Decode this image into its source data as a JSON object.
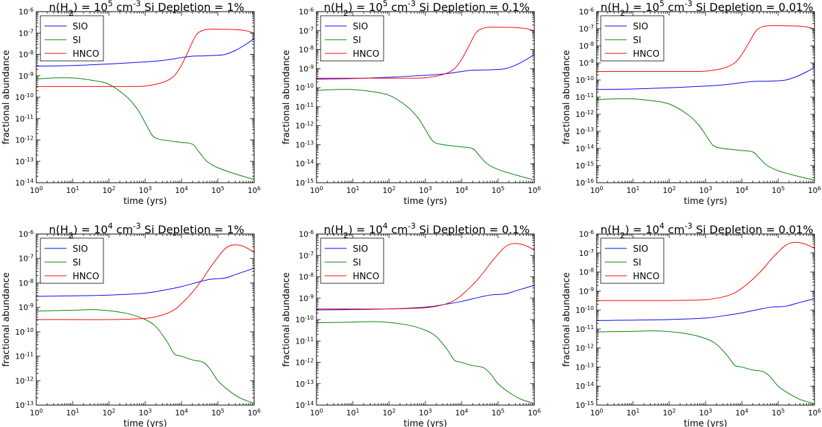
{
  "figure_title": "SIO, SI and HNCO fractional abundance vs time",
  "chart_data": [
    {
      "type": "line",
      "title_parts": {
        "n_label": "n(H",
        "n_sub": "2",
        "n_eq": ") = 10",
        "n_exp": "5",
        "unit": "cm",
        "unit_exp": "-3",
        "depletion": "Si Depletion = 1%"
      },
      "xlabel": "time (yrs)",
      "ylabel": "fractional abundance",
      "xscale": "log",
      "yscale": "log",
      "xlim_exp": [
        0,
        6
      ],
      "ylim_exp": [
        -14,
        -6
      ],
      "legend": [
        "SIO",
        "SI",
        "HNCO"
      ],
      "legend_position": "upper-left",
      "series": [
        {
          "name": "SIO",
          "color": "#0000ff",
          "x_log": [
            0,
            1,
            2,
            3,
            3.5,
            4,
            4.3,
            4.6,
            4.9,
            5.2,
            5.5,
            5.8,
            6
          ],
          "y_log": [
            -8.55,
            -8.52,
            -8.45,
            -8.35,
            -8.28,
            -8.15,
            -8.08,
            -8.07,
            -8.05,
            -8.0,
            -7.8,
            -7.5,
            -7.25
          ]
        },
        {
          "name": "SI",
          "color": "#008000",
          "x_log": [
            0,
            0.5,
            1,
            1.5,
            2,
            2.5,
            2.8,
            3,
            3.2,
            3.4,
            3.7,
            4,
            4.3,
            4.5,
            4.7,
            5,
            5.5,
            6
          ],
          "y_log": [
            -9.15,
            -9.1,
            -9.1,
            -9.2,
            -9.4,
            -10,
            -10.6,
            -11.2,
            -11.8,
            -11.97,
            -12.05,
            -12.12,
            -12.2,
            -12.6,
            -13.0,
            -13.3,
            -13.6,
            -13.85
          ]
        },
        {
          "name": "HNCO",
          "color": "#ff0000",
          "x_log": [
            0,
            1,
            2,
            2.5,
            3,
            3.5,
            3.8,
            4,
            4.2,
            4.4,
            4.6,
            4.8,
            5,
            5.5,
            5.8,
            6
          ],
          "y_log": [
            -9.5,
            -9.5,
            -9.5,
            -9.5,
            -9.48,
            -9.3,
            -9.0,
            -8.5,
            -7.8,
            -7.1,
            -6.87,
            -6.82,
            -6.82,
            -6.84,
            -6.9,
            -7.02
          ]
        }
      ]
    },
    {
      "type": "line",
      "title_parts": {
        "n_label": "n(H",
        "n_sub": "2",
        "n_eq": ") = 10",
        "n_exp": "5",
        "unit": "cm",
        "unit_exp": "-3",
        "depletion": "Si Depletion = 0.1%"
      },
      "xlabel": "time (yrs)",
      "ylabel": "fractional abundance",
      "xscale": "log",
      "yscale": "log",
      "xlim_exp": [
        0,
        6
      ],
      "ylim_exp": [
        -15,
        -6
      ],
      "legend": [
        "SIO",
        "SI",
        "HNCO"
      ],
      "legend_position": "upper-left",
      "series": [
        {
          "name": "SIO",
          "color": "#0000ff",
          "x_log": [
            0,
            1,
            2,
            3,
            3.5,
            4,
            4.3,
            4.6,
            4.9,
            5.2,
            5.5,
            5.8,
            6
          ],
          "y_log": [
            -9.55,
            -9.52,
            -9.45,
            -9.35,
            -9.28,
            -9.15,
            -9.08,
            -9.07,
            -9.05,
            -9.0,
            -8.8,
            -8.5,
            -8.25
          ]
        },
        {
          "name": "SI",
          "color": "#008000",
          "x_log": [
            0,
            0.5,
            1,
            1.5,
            2,
            2.5,
            2.8,
            3,
            3.2,
            3.4,
            3.7,
            4,
            4.3,
            4.5,
            4.7,
            5,
            5.5,
            6
          ],
          "y_log": [
            -10.15,
            -10.1,
            -10.1,
            -10.2,
            -10.4,
            -11,
            -11.6,
            -12.2,
            -12.8,
            -12.97,
            -13.05,
            -13.12,
            -13.2,
            -13.6,
            -14.0,
            -14.3,
            -14.6,
            -14.85
          ]
        },
        {
          "name": "HNCO",
          "color": "#ff0000",
          "x_log": [
            0,
            1,
            2,
            2.5,
            3,
            3.5,
            3.8,
            4,
            4.2,
            4.4,
            4.6,
            4.8,
            5,
            5.5,
            5.8,
            6
          ],
          "y_log": [
            -9.5,
            -9.5,
            -9.5,
            -9.5,
            -9.48,
            -9.3,
            -9.0,
            -8.5,
            -7.8,
            -7.1,
            -6.87,
            -6.82,
            -6.82,
            -6.84,
            -6.9,
            -7.02
          ]
        }
      ]
    },
    {
      "type": "line",
      "title_parts": {
        "n_label": "n(H",
        "n_sub": "2",
        "n_eq": ") = 10",
        "n_exp": "5",
        "unit": "cm",
        "unit_exp": "-3",
        "depletion": "Si Depletion = 0.01%"
      },
      "xlabel": "time (yrs)",
      "ylabel": "fractional abundance",
      "xscale": "log",
      "yscale": "log",
      "xlim_exp": [
        0,
        6
      ],
      "ylim_exp": [
        -16,
        -6
      ],
      "legend": [
        "SIO",
        "SI",
        "HNCO"
      ],
      "legend_position": "upper-left",
      "series": [
        {
          "name": "SIO",
          "color": "#0000ff",
          "x_log": [
            0,
            1,
            2,
            3,
            3.5,
            4,
            4.3,
            4.6,
            4.9,
            5.2,
            5.5,
            5.8,
            6
          ],
          "y_log": [
            -10.55,
            -10.52,
            -10.45,
            -10.35,
            -10.28,
            -10.15,
            -10.08,
            -10.07,
            -10.05,
            -10.0,
            -9.8,
            -9.5,
            -9.25
          ]
        },
        {
          "name": "SI",
          "color": "#008000",
          "x_log": [
            0,
            0.5,
            1,
            1.5,
            2,
            2.5,
            2.8,
            3,
            3.2,
            3.4,
            3.7,
            4,
            4.3,
            4.5,
            4.7,
            5,
            5.5,
            6
          ],
          "y_log": [
            -11.15,
            -11.1,
            -11.1,
            -11.2,
            -11.4,
            -12,
            -12.6,
            -13.2,
            -13.8,
            -13.97,
            -14.05,
            -14.12,
            -14.2,
            -14.6,
            -15.0,
            -15.3,
            -15.6,
            -15.85
          ]
        },
        {
          "name": "HNCO",
          "color": "#ff0000",
          "x_log": [
            0,
            1,
            2,
            2.5,
            3,
            3.5,
            3.8,
            4,
            4.2,
            4.4,
            4.6,
            4.8,
            5,
            5.5,
            5.8,
            6
          ],
          "y_log": [
            -9.5,
            -9.5,
            -9.5,
            -9.5,
            -9.48,
            -9.3,
            -9.0,
            -8.5,
            -7.8,
            -7.1,
            -6.87,
            -6.82,
            -6.82,
            -6.84,
            -6.9,
            -7.02
          ]
        }
      ]
    },
    {
      "type": "line",
      "title_parts": {
        "n_label": "n(H",
        "n_sub": "2",
        "n_eq": ") = 10",
        "n_exp": "4",
        "unit": "cm",
        "unit_exp": "-3",
        "depletion": "Si Depletion = 1%"
      },
      "xlabel": "time (yrs)",
      "ylabel": "fractional abundance",
      "xscale": "log",
      "yscale": "log",
      "xlim_exp": [
        0,
        6
      ],
      "ylim_exp": [
        -13,
        -6
      ],
      "legend": [
        "SIO",
        "SI",
        "HNCO"
      ],
      "legend_position": "upper-left",
      "series": [
        {
          "name": "SIO",
          "color": "#0000ff",
          "x_log": [
            0,
            1,
            2,
            3,
            3.5,
            4,
            4.5,
            4.8,
            5.2,
            5.5,
            5.8,
            6
          ],
          "y_log": [
            -8.55,
            -8.53,
            -8.5,
            -8.42,
            -8.3,
            -8.15,
            -7.95,
            -7.85,
            -7.8,
            -7.65,
            -7.5,
            -7.4
          ]
        },
        {
          "name": "SI",
          "color": "#008000",
          "x_log": [
            0,
            1,
            1.7,
            2.5,
            3,
            3.3,
            3.6,
            3.8,
            4,
            4.3,
            4.6,
            4.8,
            5,
            5.3,
            5.6,
            6
          ],
          "y_log": [
            -9.15,
            -9.12,
            -9.1,
            -9.25,
            -9.5,
            -9.8,
            -10.4,
            -10.9,
            -11.0,
            -11.15,
            -11.25,
            -11.55,
            -12.0,
            -12.4,
            -12.7,
            -12.93
          ]
        },
        {
          "name": "HNCO",
          "color": "#ff0000",
          "x_log": [
            0,
            1,
            2,
            3,
            3.5,
            3.8,
            4,
            4.2,
            4.4,
            4.6,
            4.8,
            5,
            5.2,
            5.4,
            5.7,
            6
          ],
          "y_log": [
            -9.5,
            -9.5,
            -9.5,
            -9.45,
            -9.3,
            -9.1,
            -8.85,
            -8.55,
            -8.2,
            -7.8,
            -7.35,
            -6.95,
            -6.6,
            -6.45,
            -6.5,
            -6.75
          ]
        }
      ]
    },
    {
      "type": "line",
      "title_parts": {
        "n_label": "n(H",
        "n_sub": "2",
        "n_eq": ") = 10",
        "n_exp": "4",
        "unit": "cm",
        "unit_exp": "-3",
        "depletion": "Si Depletion = 0.1%"
      },
      "xlabel": "time (yrs)",
      "ylabel": "fractional abundance",
      "xscale": "log",
      "yscale": "log",
      "xlim_exp": [
        0,
        6
      ],
      "ylim_exp": [
        -14,
        -6
      ],
      "legend": [
        "SIO",
        "SI",
        "HNCO"
      ],
      "legend_position": "upper-left",
      "series": [
        {
          "name": "SIO",
          "color": "#0000ff",
          "x_log": [
            0,
            1,
            2,
            3,
            3.5,
            4,
            4.5,
            4.8,
            5.2,
            5.5,
            5.8,
            6
          ],
          "y_log": [
            -9.55,
            -9.53,
            -9.5,
            -9.42,
            -9.3,
            -9.15,
            -8.95,
            -8.85,
            -8.8,
            -8.65,
            -8.5,
            -8.4
          ]
        },
        {
          "name": "SI",
          "color": "#008000",
          "x_log": [
            0,
            1,
            1.7,
            2.5,
            3,
            3.3,
            3.6,
            3.8,
            4,
            4.3,
            4.6,
            4.8,
            5,
            5.3,
            5.6,
            6
          ],
          "y_log": [
            -10.15,
            -10.12,
            -10.1,
            -10.25,
            -10.5,
            -10.8,
            -11.4,
            -11.9,
            -12.0,
            -12.15,
            -12.25,
            -12.55,
            -13.0,
            -13.4,
            -13.7,
            -13.93
          ]
        },
        {
          "name": "HNCO",
          "color": "#ff0000",
          "x_log": [
            0,
            1,
            2,
            3,
            3.5,
            3.8,
            4,
            4.2,
            4.4,
            4.6,
            4.8,
            5,
            5.2,
            5.4,
            5.7,
            6
          ],
          "y_log": [
            -9.5,
            -9.5,
            -9.5,
            -9.45,
            -9.3,
            -9.1,
            -8.85,
            -8.55,
            -8.2,
            -7.8,
            -7.35,
            -6.95,
            -6.6,
            -6.45,
            -6.5,
            -6.75
          ]
        }
      ]
    },
    {
      "type": "line",
      "title_parts": {
        "n_label": "n(H",
        "n_sub": "2",
        "n_eq": ") = 10",
        "n_exp": "4",
        "unit": "cm",
        "unit_exp": "-3",
        "depletion": "Si Depletion = 0.01%"
      },
      "xlabel": "time (yrs)",
      "ylabel": "fractional abundance",
      "xscale": "log",
      "yscale": "log",
      "xlim_exp": [
        0,
        6
      ],
      "ylim_exp": [
        -15,
        -6
      ],
      "legend": [
        "SIO",
        "SI",
        "HNCO"
      ],
      "legend_position": "upper-left",
      "series": [
        {
          "name": "SIO",
          "color": "#0000ff",
          "x_log": [
            0,
            1,
            2,
            3,
            3.5,
            4,
            4.5,
            4.8,
            5.2,
            5.5,
            5.8,
            6
          ],
          "y_log": [
            -10.55,
            -10.53,
            -10.5,
            -10.42,
            -10.3,
            -10.15,
            -9.95,
            -9.85,
            -9.8,
            -9.65,
            -9.5,
            -9.4
          ]
        },
        {
          "name": "SI",
          "color": "#008000",
          "x_log": [
            0,
            1,
            1.7,
            2.5,
            3,
            3.3,
            3.6,
            3.8,
            4,
            4.3,
            4.6,
            4.8,
            5,
            5.3,
            5.6,
            6
          ],
          "y_log": [
            -11.15,
            -11.12,
            -11.1,
            -11.25,
            -11.5,
            -11.8,
            -12.4,
            -12.9,
            -13.0,
            -13.15,
            -13.25,
            -13.55,
            -14.0,
            -14.4,
            -14.7,
            -14.93
          ]
        },
        {
          "name": "HNCO",
          "color": "#ff0000",
          "x_log": [
            0,
            1,
            2,
            3,
            3.5,
            3.8,
            4,
            4.2,
            4.4,
            4.6,
            4.8,
            5,
            5.2,
            5.4,
            5.7,
            6
          ],
          "y_log": [
            -9.5,
            -9.5,
            -9.5,
            -9.45,
            -9.3,
            -9.1,
            -8.85,
            -8.55,
            -8.2,
            -7.8,
            -7.35,
            -6.95,
            -6.6,
            -6.45,
            -6.5,
            -6.75
          ]
        }
      ]
    }
  ]
}
